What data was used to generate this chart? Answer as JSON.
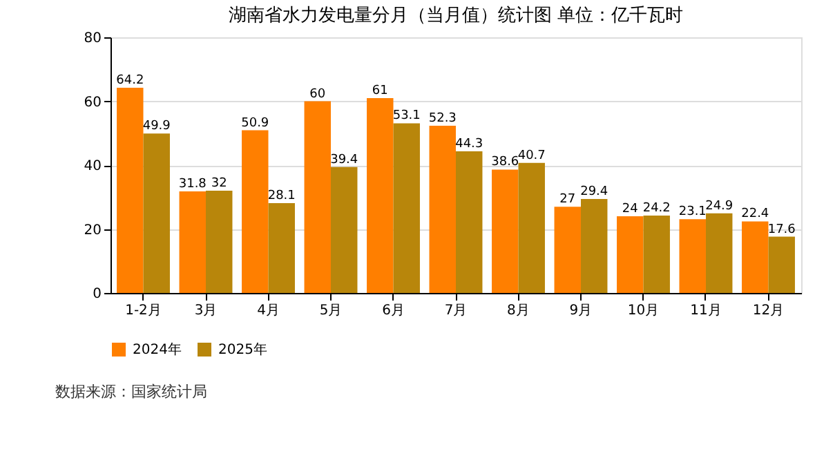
{
  "chart_data": {
    "type": "bar",
    "title": "湖南省水力发电量分月（当月值）统计图 单位：亿千瓦时",
    "categories": [
      "1-2月",
      "3月",
      "4月",
      "5月",
      "6月",
      "7月",
      "8月",
      "9月",
      "10月",
      "11月",
      "12月"
    ],
    "series": [
      {
        "name": "2024年",
        "color": "#ff7f00",
        "values": [
          64.2,
          31.8,
          50.9,
          60,
          61,
          52.3,
          38.6,
          27,
          24,
          23.1,
          22.4
        ]
      },
      {
        "name": "2025年",
        "color": "#b8860b",
        "values": [
          49.9,
          32,
          28.1,
          39.4,
          53.1,
          44.3,
          40.7,
          29.4,
          24.2,
          24.9,
          17.6
        ]
      }
    ],
    "ylim": [
      0,
      80
    ],
    "yticks": [
      0,
      20,
      40,
      60,
      80
    ],
    "grid": "y",
    "legend": "bottom",
    "data_labels": true,
    "annotations": [
      "数据来源：国家统计局"
    ]
  }
}
